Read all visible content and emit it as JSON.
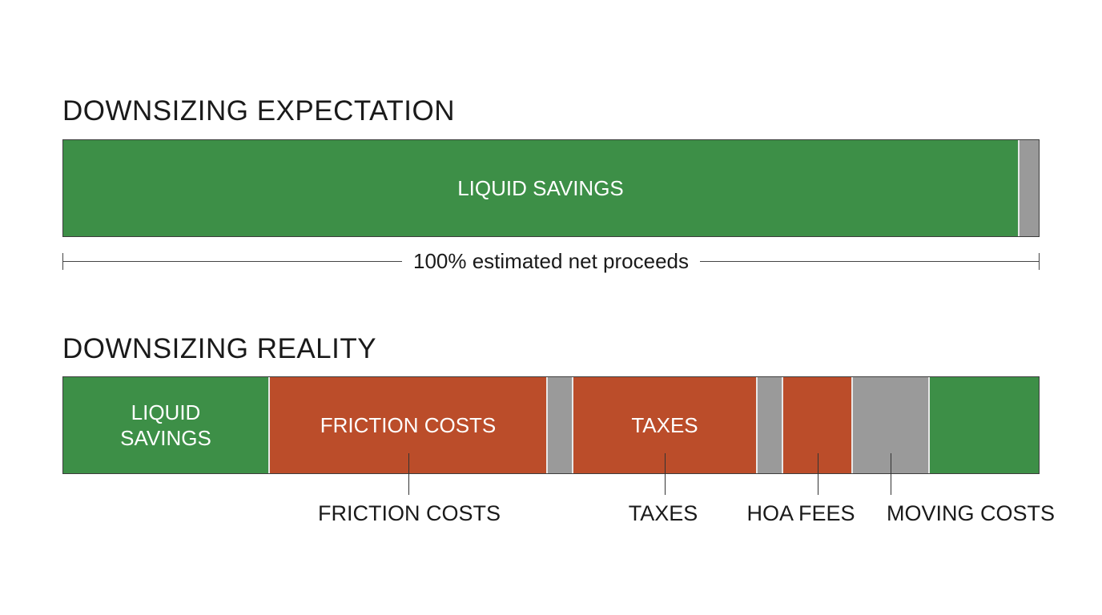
{
  "expectation": {
    "title": "DOWNSIZING EXPECTATION",
    "segments": [
      {
        "label": "LIQUID SAVINGS",
        "color": "#3d8f47",
        "share": 0.977
      },
      {
        "label": "",
        "color": "#9a9a9a",
        "share": 0.023
      }
    ],
    "dimension_label": "100% estimated net proceeds"
  },
  "reality": {
    "title": "DOWNSIZING REALITY",
    "segments": [
      {
        "label": "LIQUID\nSAVINGS",
        "color": "#3d8f47",
        "share": 0.21
      },
      {
        "label": "FRICTION COSTS",
        "color": "#bb4d2a",
        "share": 0.284
      },
      {
        "label": "",
        "color": "#9a9a9a",
        "share": 0.026
      },
      {
        "label": "TAXES",
        "color": "#bb4d2a",
        "share": 0.189
      },
      {
        "label": "",
        "color": "#9a9a9a",
        "share": 0.026
      },
      {
        "label": "",
        "color": "#bb4d2a",
        "share": 0.071
      },
      {
        "label": "",
        "color": "#9a9a9a",
        "share": 0.078
      },
      {
        "label": "",
        "color": "#3d8f47",
        "share": 0.116
      }
    ],
    "callouts": [
      "FRICTION COSTS",
      "TAXES",
      "HOA FEES",
      "MOVING COSTS"
    ]
  },
  "colors": {
    "green": "#3d8f47",
    "orange": "#bb4d2a",
    "gray": "#9a9a9a"
  }
}
